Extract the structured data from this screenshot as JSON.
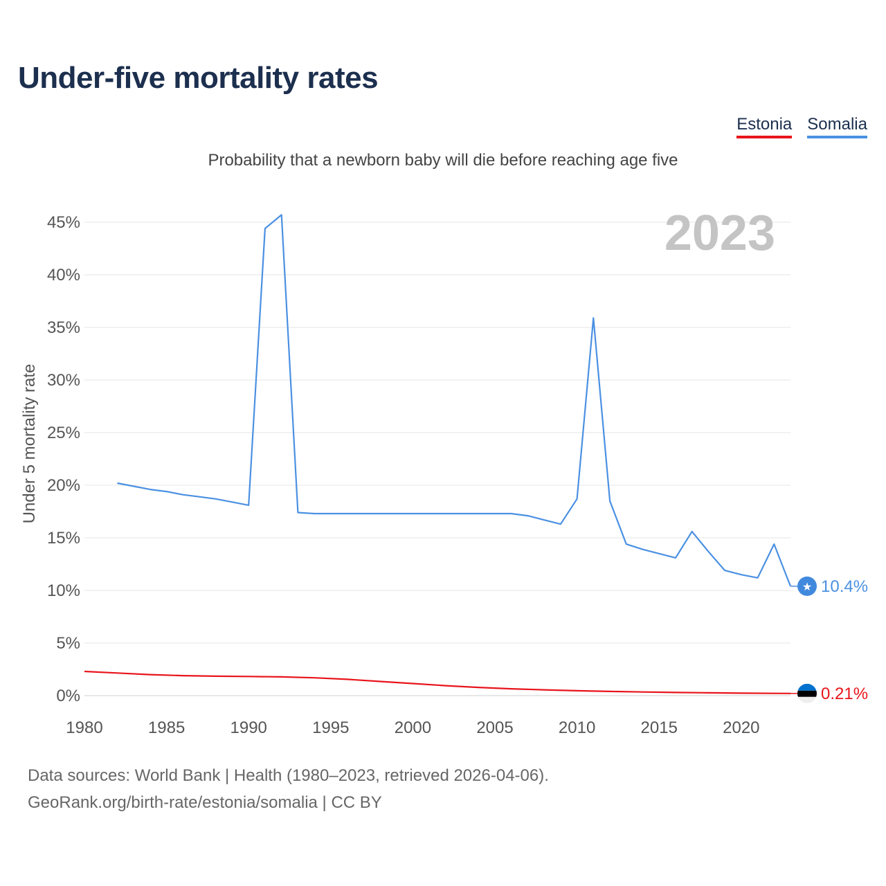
{
  "title": "Under-five mortality rates",
  "subtitle": "Probability that a newborn baby will die before reaching age five",
  "legend": [
    {
      "label": "Estonia",
      "color": "#e8141b"
    },
    {
      "label": "Somalia",
      "color": "#4a90e2"
    }
  ],
  "year_badge": "2023",
  "footer": {
    "line1": "Data sources: World Bank | Health (1980–2023, retrieved 2026-04-06).",
    "line2": "GeoRank.org/birth-rate/estonia/somalia | CC BY"
  },
  "chart_data": {
    "type": "line",
    "title": "Under-five mortality rates",
    "subtitle": "Probability that a newborn baby will die before reaching age five",
    "xlabel": "",
    "ylabel": "Under 5 mortality rate",
    "xlim": [
      1980,
      2023
    ],
    "ylim": [
      0,
      45
    ],
    "x_ticks": [
      1980,
      1985,
      1990,
      1995,
      2000,
      2005,
      2010,
      2015,
      2020
    ],
    "y_ticks": [
      0,
      5,
      10,
      15,
      20,
      25,
      30,
      35,
      40,
      45
    ],
    "y_tick_suffix": "%",
    "grid": true,
    "series": [
      {
        "name": "Somalia",
        "color": "#4a90e2",
        "end_label": "10.4%",
        "x": [
          1982,
          1983,
          1984,
          1985,
          1986,
          1987,
          1988,
          1989,
          1990,
          1991,
          1992,
          1993,
          1994,
          1995,
          1996,
          1997,
          1998,
          1999,
          2000,
          2001,
          2002,
          2003,
          2004,
          2005,
          2006,
          2007,
          2008,
          2009,
          2010,
          2011,
          2012,
          2013,
          2014,
          2015,
          2016,
          2017,
          2018,
          2019,
          2020,
          2021,
          2022,
          2023
        ],
        "values": [
          20.2,
          19.9,
          19.6,
          19.4,
          19.1,
          18.9,
          18.7,
          18.4,
          18.1,
          44.4,
          45.7,
          17.4,
          17.3,
          17.3,
          17.3,
          17.3,
          17.3,
          17.3,
          17.3,
          17.3,
          17.3,
          17.3,
          17.3,
          17.3,
          17.3,
          17.1,
          16.7,
          16.3,
          18.7,
          35.9,
          18.5,
          14.4,
          13.9,
          13.5,
          13.1,
          15.6,
          13.7,
          11.9,
          11.5,
          11.2,
          14.4,
          10.4
        ]
      },
      {
        "name": "Estonia",
        "color": "#e8141b",
        "end_label": "0.21%",
        "x": [
          1980,
          1982,
          1984,
          1986,
          1988,
          1990,
          1992,
          1994,
          1996,
          1998,
          2000,
          2002,
          2004,
          2006,
          2008,
          2010,
          2012,
          2014,
          2016,
          2018,
          2020,
          2022,
          2023
        ],
        "values": [
          2.3,
          2.15,
          2.0,
          1.9,
          1.85,
          1.82,
          1.78,
          1.7,
          1.55,
          1.35,
          1.15,
          0.95,
          0.78,
          0.65,
          0.55,
          0.47,
          0.4,
          0.35,
          0.3,
          0.27,
          0.24,
          0.22,
          0.21
        ]
      }
    ]
  }
}
